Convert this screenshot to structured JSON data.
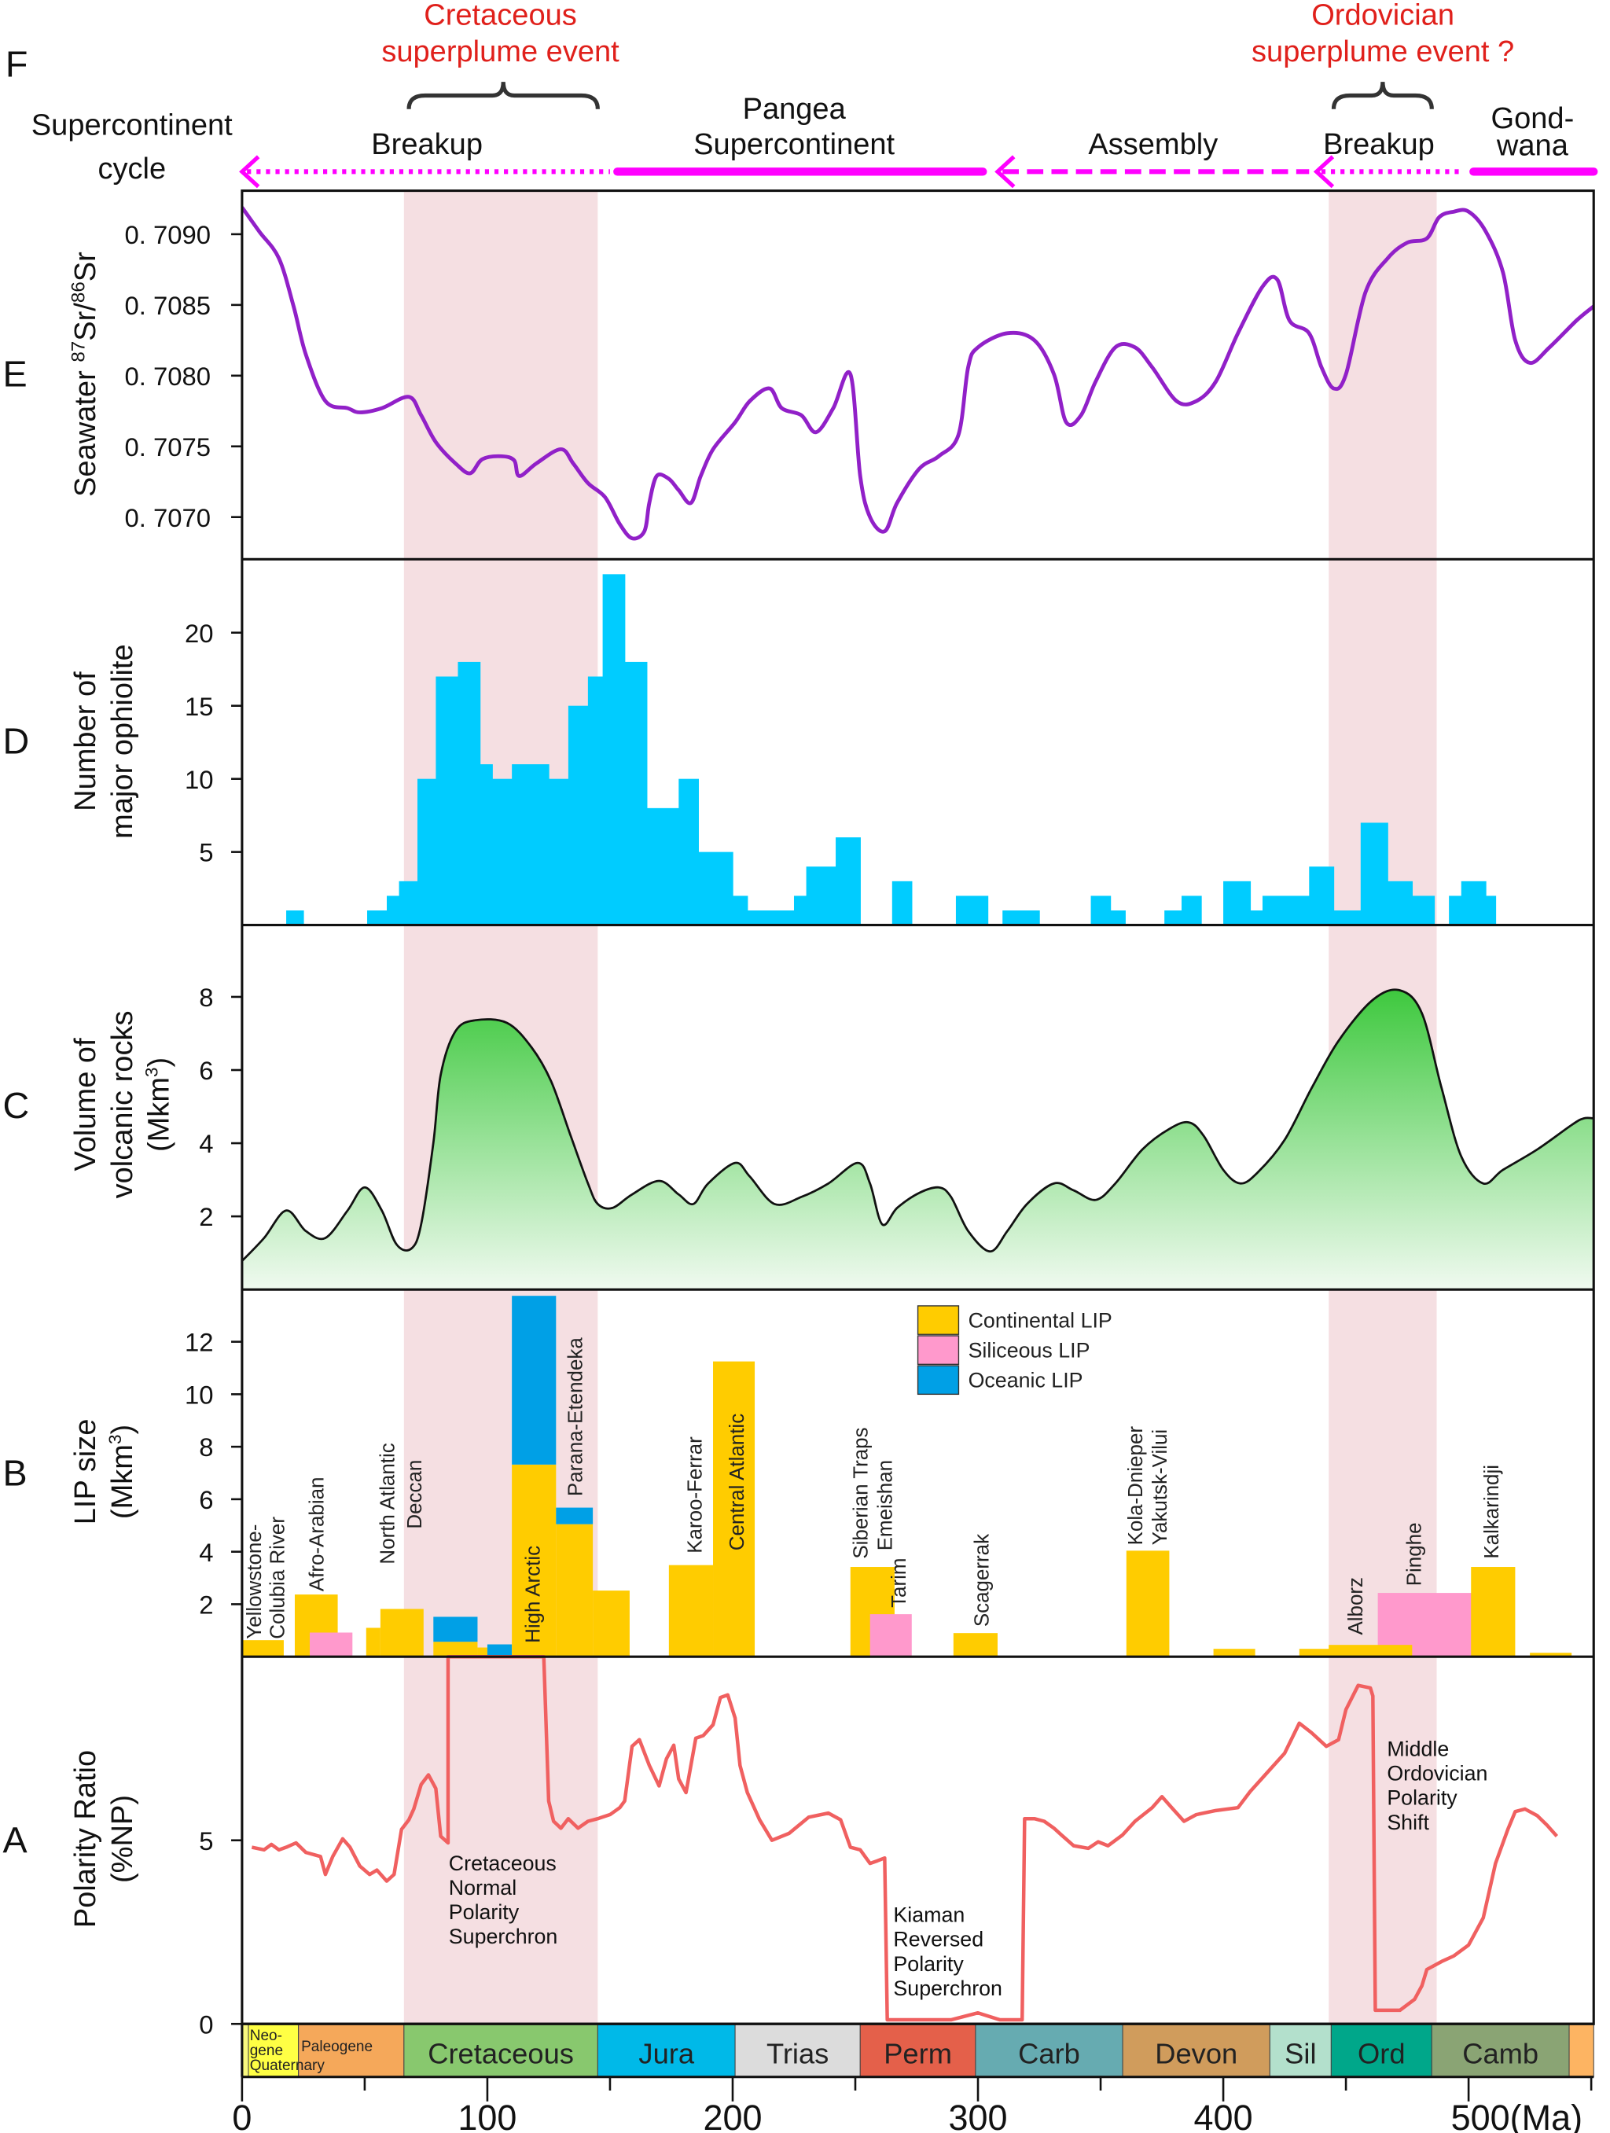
{
  "panel_letters": {
    "F": "F",
    "E": "E",
    "D": "D",
    "C": "C",
    "B": "B",
    "A": "A"
  },
  "top": {
    "cycle_label": [
      "Supercontinent",
      "cycle"
    ],
    "cretaceous_event": [
      "Cretaceous",
      "superplume event"
    ],
    "ordovician_event": [
      "Ordovician",
      "superplume event ?"
    ],
    "breakup_1": "Breakup",
    "pangea": [
      "Pangea",
      "Supercontinent"
    ],
    "assembly": "Assembly",
    "breakup_2": "Breakup",
    "gondwana": [
      "Gond-",
      "wana"
    ],
    "arrow_color": "#ff00ff",
    "event_color": "#e0201b",
    "cycle_segments": [
      {
        "style": "dotted",
        "from": 2,
        "to": 150,
        "arrowhead_at": 0
      },
      {
        "style": "solid",
        "from": 153,
        "to": 302
      },
      {
        "style": "dashed",
        "from": 310,
        "to": 435,
        "arrowhead_at": 308
      },
      {
        "style": "dotted",
        "from": 440,
        "to": 497,
        "arrowhead_at": 438
      },
      {
        "style": "solid",
        "from": 502,
        "to": 551
      }
    ],
    "braces": [
      [
        68,
        145
      ],
      [
        445,
        485
      ]
    ]
  },
  "shaded_intervals": [
    [
      66,
      145
    ],
    [
      443,
      487
    ]
  ],
  "shade_color": "#f5dfe2",
  "chart_data": [
    {
      "panel": "E",
      "type": "line",
      "color": "#9120c8",
      "ylabel_parts": [
        "Seawater ",
        "87",
        "Sr/",
        "86",
        "Sr"
      ],
      "yticks": [
        0.707,
        0.7075,
        0.708,
        0.7085,
        0.709
      ],
      "ytick_labels": [
        "0. 7070",
        "0. 7075",
        "0. 7080",
        "0. 7085",
        "0. 7090"
      ],
      "x": [
        0,
        7,
        15,
        21,
        26,
        34,
        43,
        48,
        57,
        68,
        73,
        79,
        87,
        93,
        98,
        106,
        111,
        113,
        120,
        130,
        135,
        141,
        148,
        154,
        159,
        164,
        166,
        169,
        174,
        178,
        183,
        187,
        192,
        201,
        207,
        215,
        220,
        228,
        234,
        241,
        248,
        252,
        256,
        262,
        267,
        276,
        284,
        292,
        296,
        300,
        312,
        323,
        331,
        336,
        342,
        348,
        356,
        364,
        371,
        381,
        389,
        397,
        406,
        416,
        422,
        427,
        435,
        440,
        445,
        450,
        458,
        467,
        475,
        483,
        488,
        494,
        500,
        507,
        514,
        519,
        525,
        533,
        544,
        551
      ],
      "y": [
        0.70919,
        0.70902,
        0.70883,
        0.70849,
        0.70815,
        0.70782,
        0.70777,
        0.70774,
        0.70777,
        0.70785,
        0.70772,
        0.70753,
        0.70738,
        0.70731,
        0.70741,
        0.70743,
        0.7074,
        0.70729,
        0.70738,
        0.70748,
        0.70738,
        0.70724,
        0.70714,
        0.70695,
        0.70685,
        0.7069,
        0.7071,
        0.70729,
        0.70727,
        0.70719,
        0.7071,
        0.70729,
        0.70748,
        0.70767,
        0.70782,
        0.70791,
        0.70777,
        0.70772,
        0.7076,
        0.70777,
        0.70801,
        0.70729,
        0.707,
        0.7069,
        0.7071,
        0.70734,
        0.70743,
        0.70758,
        0.70806,
        0.7082,
        0.7083,
        0.70825,
        0.70801,
        0.70767,
        0.70772,
        0.70796,
        0.7082,
        0.7082,
        0.70806,
        0.70782,
        0.70782,
        0.70796,
        0.7083,
        0.70863,
        0.70868,
        0.70839,
        0.7083,
        0.70806,
        0.70791,
        0.70801,
        0.70859,
        0.70883,
        0.70894,
        0.70897,
        0.70912,
        0.70916,
        0.70916,
        0.70902,
        0.70873,
        0.70825,
        0.70809,
        0.7082,
        0.70839,
        0.70849
      ],
      "xlim": [
        0,
        551
      ],
      "ylim": [
        0.70675,
        0.70935
      ]
    },
    {
      "panel": "D",
      "type": "bar",
      "color": "#00ccff",
      "ylabel": [
        "Number of",
        "major ophiolite"
      ],
      "yticks": [
        5,
        10,
        15,
        20
      ],
      "ytick_labels": [
        "5",
        "10",
        "15",
        "20"
      ],
      "bins": [
        [
          18,
          25,
          1
        ],
        [
          51,
          59,
          1
        ],
        [
          59,
          64,
          2
        ],
        [
          64,
          71.5,
          3
        ],
        [
          71.5,
          79,
          10
        ],
        [
          79,
          88,
          17
        ],
        [
          88,
          97,
          18
        ],
        [
          97,
          102,
          11
        ],
        [
          102,
          110,
          10
        ],
        [
          110,
          125,
          11
        ],
        [
          125,
          133,
          10
        ],
        [
          133,
          141,
          15
        ],
        [
          141,
          147,
          17
        ],
        [
          147,
          156,
          24
        ],
        [
          156,
          165,
          18
        ],
        [
          165,
          178,
          8
        ],
        [
          178,
          186,
          10
        ],
        [
          186,
          200,
          5
        ],
        [
          200,
          206,
          2
        ],
        [
          206,
          225,
          1
        ],
        [
          225,
          230,
          2
        ],
        [
          230,
          242,
          4
        ],
        [
          242,
          252,
          6
        ],
        [
          265,
          273,
          3
        ],
        [
          291,
          304,
          2
        ],
        [
          310,
          325,
          1
        ],
        [
          346,
          354,
          2
        ],
        [
          354,
          360,
          1
        ],
        [
          376,
          383,
          1
        ],
        [
          383,
          391,
          2
        ],
        [
          400,
          411,
          3
        ],
        [
          411,
          416,
          1
        ],
        [
          416,
          435,
          2
        ],
        [
          435,
          445,
          4
        ],
        [
          445,
          456,
          1
        ],
        [
          456,
          467,
          7
        ],
        [
          467,
          477,
          3
        ],
        [
          477,
          486,
          2
        ],
        [
          492,
          497,
          2
        ],
        [
          497,
          507,
          3
        ],
        [
          507,
          511,
          2
        ]
      ],
      "ylim": [
        0,
        25
      ]
    },
    {
      "panel": "C",
      "type": "area",
      "fill_top": "#3cc83c",
      "fill_bottom": "#f0faf0",
      "ylabel": [
        "Volume of",
        "volcanic rocks"
      ],
      "ylabel_unit": [
        "(Mkm",
        "3",
        ")"
      ],
      "yticks": [
        2,
        4,
        6,
        8
      ],
      "ytick_labels": [
        "2",
        "4",
        "6",
        "8"
      ],
      "x": [
        0,
        9,
        18,
        26,
        34,
        43,
        50,
        57,
        63,
        69,
        73,
        78,
        81,
        87,
        95,
        108,
        118,
        126,
        134,
        141,
        145,
        151,
        159,
        170,
        178,
        184,
        190,
        201,
        207,
        217,
        228,
        239,
        251,
        256,
        261,
        267,
        276,
        284,
        289,
        296,
        305,
        312,
        320,
        331,
        339,
        348,
        356,
        367,
        378,
        386,
        392,
        400,
        407,
        414,
        425,
        436,
        447,
        461,
        472,
        481,
        489,
        497,
        506,
        514,
        528,
        542,
        547,
        551
      ],
      "y": [
        0.78,
        1.41,
        2.16,
        1.6,
        1.41,
        2.16,
        2.79,
        2.16,
        1.23,
        1.12,
        1.78,
        4.01,
        5.87,
        7.06,
        7.36,
        7.29,
        6.62,
        5.69,
        4.2,
        2.9,
        2.34,
        2.23,
        2.6,
        2.97,
        2.6,
        2.34,
        2.9,
        3.46,
        3.09,
        2.34,
        2.53,
        2.9,
        3.46,
        2.9,
        1.78,
        2.23,
        2.64,
        2.79,
        2.53,
        1.6,
        1.04,
        1.6,
        2.34,
        2.9,
        2.71,
        2.45,
        2.9,
        3.83,
        4.39,
        4.57,
        4.2,
        3.27,
        2.9,
        3.2,
        4.09,
        5.5,
        6.8,
        7.92,
        8.18,
        7.55,
        5.5,
        3.64,
        2.9,
        3.27,
        3.83,
        4.5,
        4.68,
        4.68
      ],
      "ylim": [
        0,
        10
      ]
    },
    {
      "panel": "B",
      "type": "bar",
      "ylabel": [
        "LIP size"
      ],
      "ylabel_unit": [
        "(Mkm",
        "3",
        ")"
      ],
      "yticks": [
        2,
        4,
        6,
        8,
        10,
        12
      ],
      "ytick_labels": [
        "2",
        "4",
        "6",
        "8",
        "10",
        "12"
      ],
      "legend": [
        {
          "label": "Continental LIP",
          "color": "#ffcc00"
        },
        {
          "label": "Siliceous LIP",
          "color": "#ff99cc"
        },
        {
          "label": "Oceanic LIP",
          "color": "#00a0e6"
        }
      ],
      "legend_placement": "top-center",
      "bars": [
        {
          "type": "continental",
          "from": 0,
          "to": 17,
          "bottom": 0,
          "top": 0.63
        },
        {
          "type": "continental",
          "from": 21.5,
          "to": 39,
          "bottom": 0,
          "top": 2.37
        },
        {
          "type": "siliceous",
          "from": 27.6,
          "to": 45,
          "bottom": 0,
          "top": 0.92
        },
        {
          "type": "continental",
          "from": 50.6,
          "to": 56.4,
          "bottom": 0,
          "top": 1.1
        },
        {
          "type": "continental",
          "from": 56.4,
          "to": 74,
          "bottom": 0,
          "top": 1.82
        },
        {
          "type": "continental",
          "from": 78,
          "to": 96,
          "bottom": 0,
          "top": 0.57
        },
        {
          "type": "oceanic",
          "from": 78,
          "to": 96,
          "bottom": 0.57,
          "top": 1.52
        },
        {
          "type": "continental",
          "from": 96,
          "to": 100,
          "bottom": 0,
          "top": 0.35
        },
        {
          "type": "oceanic",
          "from": 100,
          "to": 110,
          "bottom": 0,
          "top": 0.47
        },
        {
          "type": "continental",
          "from": 110,
          "to": 128,
          "bottom": 0,
          "top": 7.32
        },
        {
          "type": "oceanic",
          "from": 110,
          "to": 128,
          "bottom": 7.32,
          "top": 13.75
        },
        {
          "type": "continental",
          "from": 128,
          "to": 143,
          "bottom": 0,
          "top": 5.05
        },
        {
          "type": "oceanic",
          "from": 128,
          "to": 143,
          "bottom": 5.05,
          "top": 5.68
        },
        {
          "type": "continental",
          "from": 143,
          "to": 158,
          "bottom": 0,
          "top": 2.52
        },
        {
          "type": "continental",
          "from": 174,
          "to": 192,
          "bottom": 0,
          "top": 3.49
        },
        {
          "type": "continental",
          "from": 192,
          "to": 209,
          "bottom": 0,
          "top": 11.25
        },
        {
          "type": "continental",
          "from": 248,
          "to": 266,
          "bottom": 0,
          "top": 3.42
        },
        {
          "type": "siliceous",
          "from": 256,
          "to": 273,
          "bottom": 0,
          "top": 1.62
        },
        {
          "type": "continental",
          "from": 290,
          "to": 308,
          "bottom": 0,
          "top": 0.9
        },
        {
          "type": "continental",
          "from": 360.5,
          "to": 378,
          "bottom": 0,
          "top": 4.04
        },
        {
          "type": "continental",
          "from": 396,
          "to": 413,
          "bottom": 0,
          "top": 0.3
        },
        {
          "type": "continental",
          "from": 431,
          "to": 448,
          "bottom": 0,
          "top": 0.3
        },
        {
          "type": "siliceous",
          "from": 463,
          "to": 507,
          "bottom": 0,
          "top": 2.43
        },
        {
          "type": "continental",
          "from": 443,
          "to": 477,
          "bottom": 0,
          "top": 0.45
        },
        {
          "type": "continental",
          "from": 501,
          "to": 519,
          "bottom": 0,
          "top": 3.42
        },
        {
          "type": "continental",
          "from": 525,
          "to": 542,
          "bottom": 0,
          "top": 0.15
        }
      ],
      "labels": [
        "Yellowstone-",
        "Colubia River",
        "Afro-Arabian",
        "North Atlantic",
        "Deccan",
        "High Arctic",
        "Parana-Etendeka",
        "Karoo-Ferrar",
        "Central Atlantic",
        "Siberian Traps",
        "Emeishan",
        "Tarim",
        "Scagerrak",
        "Kola-Dnieper",
        "Yakutsk-Vilui",
        "Alborz",
        "Pinghe",
        "Kalkarindji"
      ],
      "ylim": [
        0,
        14
      ]
    },
    {
      "panel": "A",
      "type": "line",
      "color": "#f06060",
      "ylabel": [
        "Polarity Ratio",
        "(%NP)"
      ],
      "yticks": [
        0,
        5
      ],
      "ytick_labels": [
        "0",
        "5"
      ],
      "x": [
        4,
        9,
        12,
        15,
        18,
        22,
        26,
        32,
        34,
        37,
        41,
        44,
        48,
        52,
        55,
        59,
        62,
        65,
        68,
        70,
        73,
        76,
        79,
        81,
        84,
        84,
        123,
        125,
        127,
        130,
        133,
        137,
        141,
        145,
        150,
        154,
        156,
        159,
        162,
        166,
        170,
        173,
        176,
        178,
        181,
        185,
        188,
        192,
        195,
        198,
        201,
        203,
        206,
        211,
        216,
        223,
        231,
        239,
        244,
        248,
        252,
        256,
        259,
        262,
        263,
        289,
        300,
        309,
        318,
        319,
        323,
        327,
        331,
        334,
        339,
        345,
        349,
        353,
        359,
        364,
        371,
        375,
        379,
        384,
        389,
        397,
        406,
        411,
        420,
        425,
        431,
        436,
        442,
        447,
        450,
        455,
        460,
        461,
        462,
        472,
        478,
        481,
        483,
        489,
        494,
        500,
        506,
        511,
        516,
        519,
        523,
        528,
        532,
        536
      ],
      "y": [
        4.81,
        4.74,
        4.89,
        4.74,
        4.81,
        4.93,
        4.67,
        4.56,
        4.07,
        4.56,
        5.04,
        4.81,
        4.3,
        4.07,
        4.19,
        3.89,
        4.07,
        5.3,
        5.56,
        5.85,
        6.52,
        6.78,
        6.41,
        5.11,
        4.93,
        10.0,
        10.0,
        6.07,
        5.52,
        5.33,
        5.59,
        5.33,
        5.52,
        5.59,
        5.7,
        5.89,
        6.07,
        7.56,
        7.74,
        7.04,
        6.48,
        7.22,
        7.59,
        6.67,
        6.3,
        7.78,
        7.85,
        8.15,
        8.89,
        8.96,
        8.33,
        7.04,
        6.3,
        5.56,
        5.0,
        5.19,
        5.63,
        5.74,
        5.56,
        4.81,
        4.74,
        4.37,
        4.44,
        4.52,
        0.11,
        0.11,
        0.3,
        0.11,
        0.11,
        5.59,
        5.59,
        5.52,
        5.33,
        5.15,
        4.85,
        4.78,
        4.96,
        4.85,
        5.15,
        5.52,
        5.89,
        6.19,
        5.89,
        5.52,
        5.7,
        5.81,
        5.89,
        6.33,
        7.0,
        7.37,
        8.19,
        7.93,
        7.56,
        7.74,
        8.56,
        9.22,
        9.15,
        8.93,
        0.37,
        0.37,
        0.67,
        1.04,
        1.48,
        1.7,
        1.85,
        2.15,
        2.89,
        4.37,
        5.3,
        5.78,
        5.85,
        5.67,
        5.41,
        5.11
      ],
      "annotations": [
        [
          "Cretaceous",
          "Normal",
          "Polarity",
          "Superchron"
        ],
        [
          "Kiaman",
          "Reversed",
          "Polarity",
          "Superchron"
        ],
        [
          "Middle",
          "Ordovician",
          "Polarity",
          "Shift"
        ]
      ],
      "ylim": [
        0,
        10
      ]
    }
  ],
  "timescale": [
    {
      "name": "",
      "start": 0,
      "end": 2.6,
      "color": "#f9f97f"
    },
    {
      "name": "Neo-gene",
      "start": 2.6,
      "end": 23,
      "color": "#ffff44"
    },
    {
      "name": "Paleogene",
      "start": 23,
      "end": 66,
      "color": "#f5a85a"
    },
    {
      "name": "Cretaceous",
      "start": 66,
      "end": 145,
      "color": "#88c86e"
    },
    {
      "name": "Jura",
      "start": 145,
      "end": 201,
      "color": "#00b9e8"
    },
    {
      "name": "Trias",
      "start": 201,
      "end": 252,
      "color": "#dcdcdc"
    },
    {
      "name": "Perm",
      "start": 252,
      "end": 299,
      "color": "#e4604a"
    },
    {
      "name": "Carb",
      "start": 299,
      "end": 359,
      "color": "#66abb1"
    },
    {
      "name": "Devon",
      "start": 359,
      "end": 419,
      "color": "#d09c5c"
    },
    {
      "name": "Sil",
      "start": 419,
      "end": 444,
      "color": "#b3e0cc"
    },
    {
      "name": "Ord",
      "start": 444,
      "end": 485,
      "color": "#00a78a"
    },
    {
      "name": "Camb",
      "start": 485,
      "end": 541,
      "color": "#8aa474"
    },
    {
      "name": "",
      "start": 541,
      "end": 551,
      "color": "#fdb462"
    }
  ],
  "timescale_small": {
    "neo": "Neo-",
    "gene": "gene",
    "quaternary": "Quaternary"
  },
  "x_axis": {
    "ticks": [
      0,
      100,
      200,
      300,
      400,
      500
    ],
    "tick_labels": [
      "0",
      "100",
      "200",
      "300",
      "400",
      "500(Ma)"
    ]
  }
}
